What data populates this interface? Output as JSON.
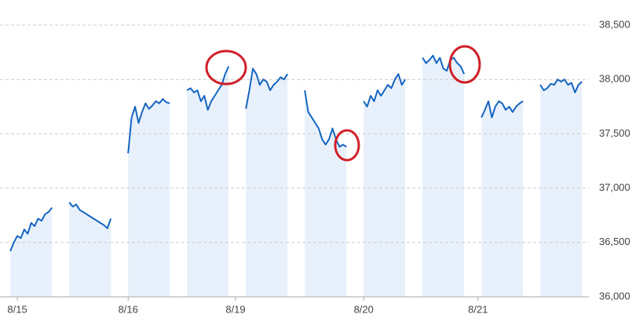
{
  "chart_data": {
    "type": "line",
    "x": [
      0,
      1,
      2,
      3,
      4,
      5,
      6,
      7,
      8,
      9,
      10,
      11,
      12,
      14,
      17,
      18,
      19,
      20,
      21,
      22,
      23,
      24,
      25,
      26,
      27,
      28,
      29,
      31,
      34,
      35,
      36,
      37,
      38,
      39,
      40,
      41,
      42,
      43,
      44,
      45,
      46,
      48,
      51,
      52,
      53,
      54,
      55,
      56,
      57,
      58,
      59,
      60,
      61,
      62,
      63,
      65,
      68,
      69,
      70,
      71,
      72,
      73,
      74,
      75,
      76,
      77,
      78,
      79,
      80,
      82,
      85,
      86,
      87,
      88,
      89,
      90,
      91,
      92,
      93,
      94,
      95,
      96,
      97,
      99,
      102,
      103,
      104,
      105,
      106,
      107,
      108,
      109,
      110,
      111,
      112,
      113,
      114,
      116,
      119,
      120,
      121,
      122,
      123,
      124,
      125,
      126,
      127,
      128,
      129,
      130,
      131,
      133,
      136,
      137,
      138,
      139,
      140,
      141,
      142,
      143,
      144,
      145,
      146,
      147,
      148,
      150,
      153,
      154,
      155,
      156,
      157,
      158,
      159,
      160,
      161,
      162,
      163,
      164,
      165
    ],
    "series": [
      {
        "color": "#1565c0",
        "values": [
          36420,
          36500,
          36560,
          36540,
          36620,
          36580,
          36680,
          36650,
          36720,
          36700,
          36760,
          36780,
          36820,
          null,
          36870,
          36830,
          36850,
          36800,
          36780,
          36760,
          36740,
          36720,
          36700,
          36680,
          36660,
          36630,
          36720,
          null,
          37320,
          37650,
          37750,
          37600,
          37700,
          37780,
          37730,
          37760,
          37800,
          37780,
          37820,
          37790,
          37780,
          null,
          37900,
          37920,
          37880,
          37900,
          37800,
          37850,
          37720,
          37800,
          37850,
          37900,
          37950,
          38050,
          38120,
          null,
          37730,
          37900,
          38100,
          38050,
          37950,
          38000,
          37980,
          37900,
          37950,
          37980,
          38020,
          38000,
          38050,
          null,
          37900,
          37700,
          37650,
          37600,
          37550,
          37450,
          37400,
          37450,
          37550,
          37450,
          37380,
          37400,
          37380,
          null,
          37800,
          37750,
          37850,
          37800,
          37900,
          37850,
          37900,
          37950,
          37920,
          38000,
          38050,
          37950,
          38000,
          null,
          38200,
          38150,
          38180,
          38220,
          38150,
          38200,
          38100,
          38080,
          38180,
          38200,
          38150,
          38120,
          38050,
          null,
          37650,
          37720,
          37800,
          37650,
          37750,
          37800,
          37780,
          37720,
          37750,
          37700,
          37750,
          37780,
          37800,
          null,
          37950,
          37900,
          37920,
          37960,
          37950,
          38000,
          37980,
          38000,
          37950,
          37970,
          37880,
          37950,
          37980
        ]
      }
    ],
    "area_color": "#e8f1fb",
    "xlim": [
      -3,
      167
    ],
    "xticks": [
      {
        "value": 2,
        "label": "8/15"
      },
      {
        "value": 34,
        "label": "8/16"
      },
      {
        "value": 65,
        "label": "8/19"
      },
      {
        "value": 102,
        "label": "8/20"
      },
      {
        "value": 135,
        "label": "8/21"
      }
    ],
    "ylim": [
      36000,
      38500
    ],
    "yticks": [
      {
        "value": 36000,
        "label": "36,000"
      },
      {
        "value": 36500,
        "label": "36,500"
      },
      {
        "value": 37000,
        "label": "37,000"
      },
      {
        "value": 37500,
        "label": "37,500"
      },
      {
        "value": 38000,
        "label": "38,000"
      },
      {
        "value": 38500,
        "label": "38,500"
      }
    ],
    "grid": true
  }
}
